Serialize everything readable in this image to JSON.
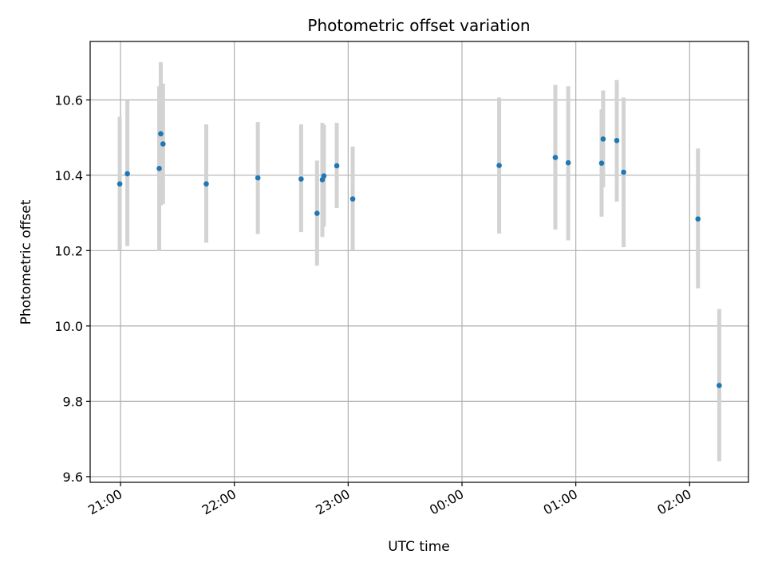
{
  "chart_data": {
    "type": "scatter",
    "title": "Photometric offset variation",
    "xlabel": "UTC time",
    "ylabel": "Photometric offset",
    "x_axis_type": "time",
    "x_range": [
      "20:44",
      "02:31"
    ],
    "ylim": [
      9.585,
      10.755
    ],
    "grid": true,
    "x_ticks": [
      "21:00",
      "22:00",
      "23:00",
      "00:00",
      "01:00",
      "02:00"
    ],
    "y_ticks": [
      "9.6",
      "9.8",
      "10.0",
      "10.2",
      "10.4",
      "10.6"
    ],
    "colors": {
      "marker": "#1f77b4",
      "errorbar": "#d3d3d3",
      "grid": "#b0b0b0"
    },
    "points": [
      {
        "time": "20:59.6",
        "y": 10.377,
        "ylo": 10.201,
        "yhi": 10.555
      },
      {
        "time": "21:03.6",
        "y": 10.404,
        "ylo": 10.212,
        "yhi": 10.599
      },
      {
        "time": "21:20.4",
        "y": 10.418,
        "ylo": 10.199,
        "yhi": 10.636
      },
      {
        "time": "21:21.2",
        "y": 10.51,
        "ylo": 10.32,
        "yhi": 10.7
      },
      {
        "time": "21:22.4",
        "y": 10.483,
        "ylo": 10.323,
        "yhi": 10.643
      },
      {
        "time": "21:45.2",
        "y": 10.377,
        "ylo": 10.221,
        "yhi": 10.535
      },
      {
        "time": "22:12.4",
        "y": 10.393,
        "ylo": 10.244,
        "yhi": 10.541
      },
      {
        "time": "22:35.2",
        "y": 10.39,
        "ylo": 10.249,
        "yhi": 10.535
      },
      {
        "time": "22:43.6",
        "y": 10.299,
        "ylo": 10.16,
        "yhi": 10.439
      },
      {
        "time": "22:46.4",
        "y": 10.388,
        "ylo": 10.236,
        "yhi": 10.539
      },
      {
        "time": "22:47.2",
        "y": 10.398,
        "ylo": 10.264,
        "yhi": 10.534
      },
      {
        "time": "22:54.0",
        "y": 10.425,
        "ylo": 10.313,
        "yhi": 10.539
      },
      {
        "time": "23:02.4",
        "y": 10.337,
        "ylo": 10.2,
        "yhi": 10.476
      },
      {
        "time": "00:19.6",
        "y": 10.426,
        "ylo": 10.245,
        "yhi": 10.606
      },
      {
        "time": "00:49.2",
        "y": 10.447,
        "ylo": 10.256,
        "yhi": 10.64
      },
      {
        "time": "00:56.0",
        "y": 10.433,
        "ylo": 10.227,
        "yhi": 10.636
      },
      {
        "time": "01:13.6",
        "y": 10.432,
        "ylo": 10.29,
        "yhi": 10.575
      },
      {
        "time": "01:14.4",
        "y": 10.496,
        "ylo": 10.368,
        "yhi": 10.625
      },
      {
        "time": "01:21.6",
        "y": 10.492,
        "ylo": 10.33,
        "yhi": 10.653
      },
      {
        "time": "01:25.2",
        "y": 10.408,
        "ylo": 10.209,
        "yhi": 10.606
      },
      {
        "time": "02:04.4",
        "y": 10.284,
        "ylo": 10.1,
        "yhi": 10.471
      },
      {
        "time": "02:15.6",
        "y": 9.842,
        "ylo": 9.641,
        "yhi": 10.045
      }
    ]
  }
}
